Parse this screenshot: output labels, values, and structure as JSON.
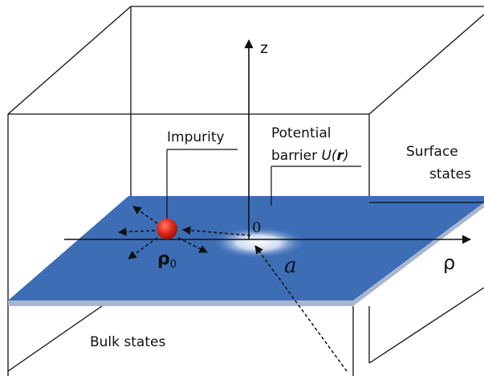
{
  "labels": {
    "z_axis": "z",
    "rho_axis": "ρ",
    "origin": "0",
    "impurity": "Impurity",
    "barrier_line1": "Potential",
    "barrier_line2_text": "barrier ",
    "barrier_U": "U(",
    "barrier_r": "r",
    "barrier_close": ")",
    "surface_line1": "Surface",
    "surface_line2": "states",
    "bulk": "Bulk states",
    "rho0_main": "ρ",
    "rho0_sub": "0",
    "a": "a"
  },
  "colors": {
    "surface_plane": "#3d6db5",
    "plane_edge": "#a8b7cf",
    "impurity": "#e02a1a",
    "lines": "#111111"
  }
}
